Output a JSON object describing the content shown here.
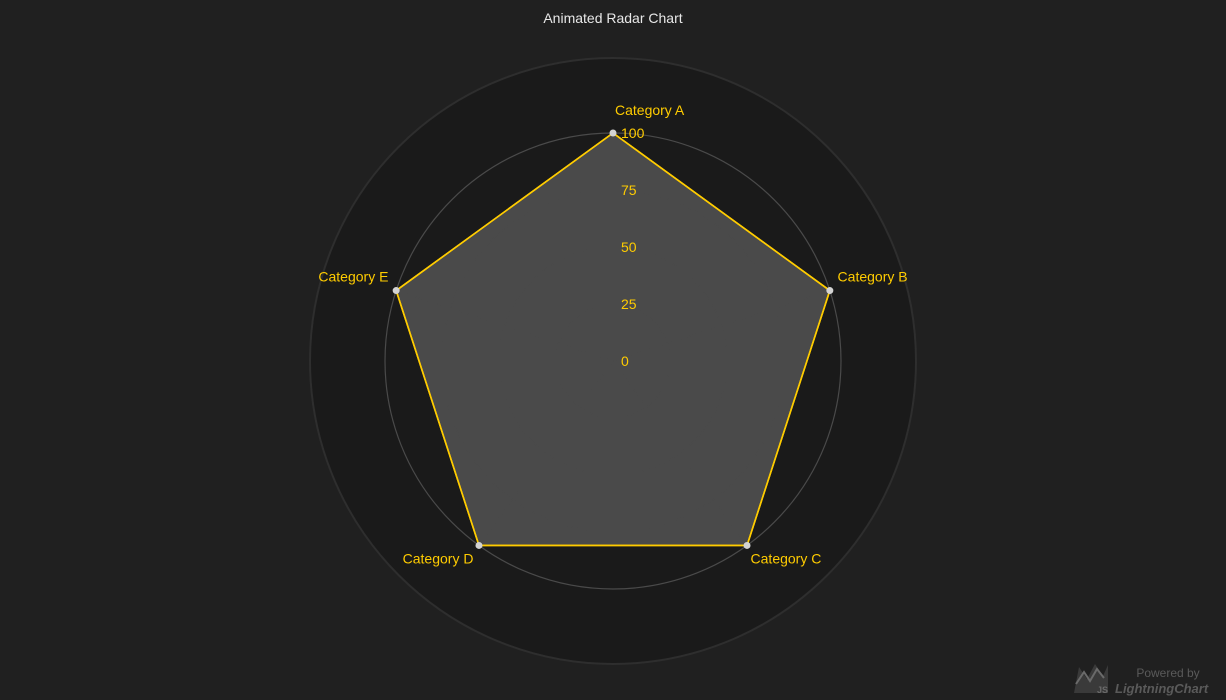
{
  "chart_data": {
    "type": "radar",
    "title": "Animated Radar Chart",
    "categories": [
      "Category A",
      "Category B",
      "Category C",
      "Category D",
      "Category E"
    ],
    "series": [
      {
        "values": [
          100,
          100,
          100,
          100,
          100
        ]
      }
    ],
    "rlim": [
      0,
      100
    ],
    "rticks": [
      "0",
      "25",
      "50",
      "75",
      "100"
    ],
    "grid": true,
    "legend": "none",
    "colors": {
      "background": "#202020",
      "plot_area": "#1a1a1a",
      "grid": "#4a4a4a",
      "series_line": "#ffcc00",
      "series_fill": "#4a4a4a",
      "point": "#d3d3d3",
      "labels": "#ffcc00",
      "title": "#e8e8e8"
    }
  },
  "watermark": {
    "powered": "Powered by",
    "brand": "LightningChart",
    "logo_mark": "JS"
  }
}
